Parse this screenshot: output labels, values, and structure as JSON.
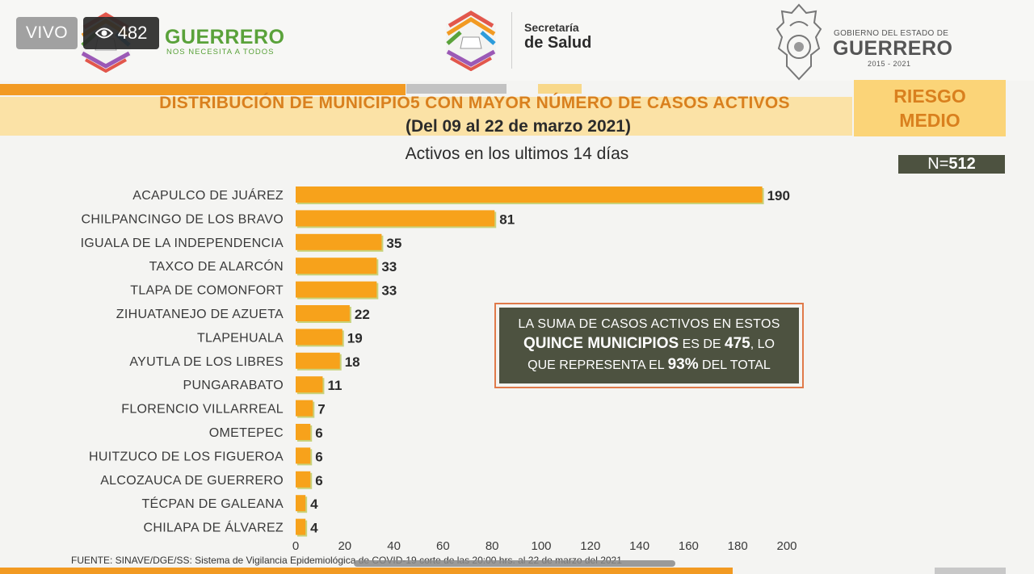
{
  "overlay": {
    "live_label": "VIVO",
    "viewer_count": "482",
    "viewer_icon": "eye-icon"
  },
  "header": {
    "guerrero_name": "GUERRERO",
    "guerrero_tagline": "NOS NECESITA A TODOS",
    "salud_line1": "Secretaría",
    "salud_line2": "de Salud",
    "gobierno_line1": "GOBIERNO DEL ESTADO DE",
    "gobierno_line2": "GUERRERO",
    "gobierno_years": "2015 - 2021"
  },
  "title": {
    "main": "DISTRIBUCIÓN DE MUNICIPIO5 CON MAYOR NÚMERO DE  CASOS ACTIVOS",
    "dates": "(Del 09 al 22 de marzo 2021)",
    "risk_line1": "RIESGO",
    "risk_line2": "MEDIO"
  },
  "n_total": {
    "label": "N=",
    "value": "512"
  },
  "summary": {
    "line1": "LA SUMA DE CASOS ACTIVOS EN ESTOS",
    "line2_bold": "QUINCE MUNICIPIOS",
    "line2_mid": " ES DE ",
    "line2_value": "475",
    "line2_end": ", LO",
    "line3_start": "QUE REPRESENTA EL ",
    "line3_value": "93%",
    "line3_end": " DEL TOTAL"
  },
  "source_text": "FUENTE: SINAVE/DGE/SS: Sistema de Vigilancia Epidemiológica de COVID-19 corte de las 20:00 hrs. al 22 de marzo del 2021",
  "colors": {
    "bar": "#f7a21b",
    "bar_shadow": "#c9d27a",
    "accent_orange": "#f29a22",
    "title_orange": "#d9801e",
    "dark_box": "#4d5240"
  },
  "chart_data": {
    "type": "bar",
    "orientation": "horizontal",
    "title": "Activos en los ultimos 14 días",
    "categories": [
      "ACAPULCO DE JUÁREZ",
      "CHILPANCINGO DE LOS BRAVO",
      "IGUALA DE LA INDEPENDENCIA",
      "TAXCO DE ALARCÓN",
      "TLAPA DE COMONFORT",
      "ZIHUATANEJO DE AZUETA",
      "TLAPEHUALA",
      "AYUTLA DE LOS LIBRES",
      "PUNGARABATO",
      "FLORENCIO VILLARREAL",
      "OMETEPEC",
      "HUITZUCO DE LOS FIGUEROA",
      "ALCOZAUCA DE GUERRERO",
      "TÉCPAN DE GALEANA",
      "CHILAPA DE ÁLVAREZ"
    ],
    "values": [
      190,
      81,
      35,
      33,
      33,
      22,
      19,
      18,
      11,
      7,
      6,
      6,
      6,
      4,
      4
    ],
    "xlim": [
      0,
      200
    ],
    "xticks": [
      0,
      20,
      40,
      60,
      80,
      100,
      120,
      140,
      160,
      180,
      200
    ],
    "grid": false,
    "data_labels": true
  }
}
